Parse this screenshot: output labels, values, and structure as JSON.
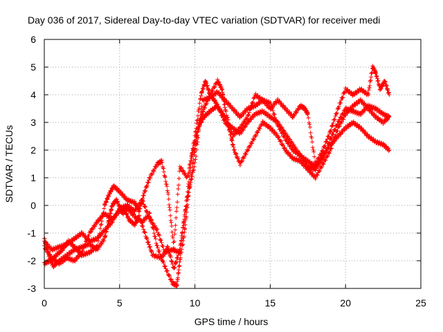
{
  "chart_data": {
    "type": "scatter",
    "title": "Day 036 of 2017, Sidereal Day-to-day VTEC variation (SDTVAR) for receiver medi",
    "xlabel": "GPS time / hours",
    "ylabel": "SDTVAR / TECUs",
    "xlim": [
      0,
      25
    ],
    "ylim": [
      -3,
      6
    ],
    "xticks": [
      "0",
      "5",
      "10",
      "15",
      "20",
      "25"
    ],
    "yticks": [
      "-3",
      "-2",
      "-1",
      "0",
      "1",
      "2",
      "3",
      "4",
      "5",
      "6"
    ],
    "grid": true,
    "marker": "+",
    "color": "#ff0000",
    "series": [
      {
        "points": [
          [
            0.0,
            -1.2
          ],
          [
            0.3,
            -1.8
          ],
          [
            0.6,
            -2.2
          ],
          [
            1.0,
            -2.0
          ],
          [
            1.5,
            -1.8
          ],
          [
            2.0,
            -1.6
          ],
          [
            2.5,
            -1.5
          ],
          [
            3.0,
            -1.4
          ],
          [
            3.5,
            -1.6
          ],
          [
            4.0,
            -1.2
          ],
          [
            4.3,
            -0.5
          ],
          [
            4.5,
            0.0
          ],
          [
            4.8,
            0.2
          ],
          [
            5.2,
            -0.3
          ],
          [
            5.5,
            -0.1
          ],
          [
            6.0,
            -0.4
          ],
          [
            6.5,
            -0.6
          ],
          [
            7.0,
            -0.3
          ],
          [
            7.5,
            -1.5
          ],
          [
            8.0,
            -2.2
          ],
          [
            8.5,
            -2.8
          ],
          [
            8.8,
            -2.9
          ],
          [
            9.0,
            -2.0
          ],
          [
            9.3,
            -1.0
          ],
          [
            9.6,
            0.5
          ],
          [
            10.0,
            2.0
          ],
          [
            10.3,
            3.0
          ],
          [
            10.6,
            3.5
          ],
          [
            11.0,
            4.0
          ],
          [
            11.3,
            3.8
          ],
          [
            11.6,
            3.5
          ],
          [
            12.0,
            3.2
          ],
          [
            12.3,
            2.7
          ],
          [
            12.6,
            2.0
          ],
          [
            13.0,
            1.5
          ],
          [
            13.5,
            2.0
          ],
          [
            14.0,
            2.5
          ],
          [
            14.5,
            3.0
          ],
          [
            15.0,
            2.8
          ],
          [
            15.5,
            2.5
          ],
          [
            16.0,
            2.0
          ],
          [
            16.5,
            1.7
          ],
          [
            17.0,
            1.6
          ],
          [
            17.5,
            1.3
          ],
          [
            18.0,
            1.0
          ],
          [
            18.5,
            1.5
          ],
          [
            19.0,
            2.0
          ],
          [
            19.5,
            2.8
          ],
          [
            20.0,
            3.3
          ],
          [
            20.5,
            3.6
          ],
          [
            21.0,
            3.8
          ],
          [
            21.5,
            3.5
          ],
          [
            22.0,
            3.2
          ],
          [
            22.5,
            3.0
          ],
          [
            22.9,
            3.2
          ]
        ]
      },
      {
        "points": [
          [
            0.0,
            -2.1
          ],
          [
            0.4,
            -2.0
          ],
          [
            0.8,
            -1.8
          ],
          [
            1.2,
            -1.6
          ],
          [
            1.6,
            -1.3
          ],
          [
            2.0,
            -1.5
          ],
          [
            2.5,
            -1.8
          ],
          [
            3.0,
            -1.7
          ],
          [
            3.5,
            -1.5
          ],
          [
            4.0,
            0.0
          ],
          [
            4.3,
            0.4
          ],
          [
            4.6,
            0.7
          ],
          [
            5.0,
            0.5
          ],
          [
            5.5,
            0.2
          ],
          [
            6.0,
            0.1
          ],
          [
            6.3,
            -0.2
          ],
          [
            6.6,
            0.4
          ],
          [
            7.0,
            1.0
          ],
          [
            7.5,
            1.5
          ],
          [
            7.8,
            1.6
          ],
          [
            8.2,
            0.5
          ],
          [
            8.6,
            -1.5
          ],
          [
            9.0,
            1.4
          ],
          [
            9.5,
            1.0
          ],
          [
            10.0,
            2.5
          ],
          [
            10.4,
            4.0
          ],
          [
            10.7,
            4.5
          ],
          [
            11.0,
            4.0
          ],
          [
            11.5,
            4.5
          ],
          [
            11.8,
            4.2
          ],
          [
            12.0,
            3.5
          ],
          [
            12.5,
            2.5
          ],
          [
            13.0,
            2.8
          ],
          [
            13.5,
            3.2
          ],
          [
            14.0,
            4.0
          ],
          [
            14.5,
            3.8
          ],
          [
            15.0,
            3.5
          ],
          [
            15.5,
            3.8
          ],
          [
            16.0,
            3.5
          ],
          [
            16.5,
            3.2
          ],
          [
            17.0,
            3.6
          ],
          [
            17.3,
            3.5
          ],
          [
            17.5,
            3.3
          ],
          [
            18.0,
            1.5
          ],
          [
            18.5,
            2.0
          ],
          [
            19.0,
            2.7
          ],
          [
            19.5,
            3.5
          ],
          [
            20.0,
            4.2
          ],
          [
            20.5,
            4.0
          ],
          [
            21.0,
            4.2
          ],
          [
            21.5,
            4.0
          ],
          [
            21.8,
            5.0
          ],
          [
            22.0,
            4.8
          ],
          [
            22.3,
            4.2
          ],
          [
            22.6,
            4.5
          ],
          [
            22.9,
            4.0
          ]
        ]
      },
      {
        "points": [
          [
            0.0,
            -1.5
          ],
          [
            0.5,
            -1.9
          ],
          [
            1.0,
            -2.1
          ],
          [
            1.5,
            -1.9
          ],
          [
            2.0,
            -2.0
          ],
          [
            2.5,
            -1.7
          ],
          [
            3.0,
            -1.0
          ],
          [
            3.5,
            -0.6
          ],
          [
            4.0,
            -0.3
          ],
          [
            4.5,
            -0.5
          ],
          [
            5.0,
            -0.2
          ],
          [
            5.3,
            -0.1
          ],
          [
            5.6,
            -0.5
          ],
          [
            6.0,
            -0.7
          ],
          [
            6.3,
            -0.4
          ],
          [
            6.8,
            -1.2
          ],
          [
            7.2,
            -1.8
          ],
          [
            7.8,
            -1.9
          ],
          [
            8.2,
            -1.5
          ],
          [
            8.6,
            -2.3
          ],
          [
            9.0,
            -1.6
          ],
          [
            9.4,
            0.0
          ],
          [
            9.8,
            1.8
          ],
          [
            10.2,
            2.8
          ],
          [
            10.6,
            3.2
          ],
          [
            11.0,
            3.4
          ],
          [
            11.5,
            3.6
          ],
          [
            12.0,
            3.0
          ],
          [
            12.5,
            2.8
          ],
          [
            13.0,
            2.6
          ],
          [
            13.5,
            3.0
          ],
          [
            14.0,
            3.3
          ],
          [
            14.5,
            3.4
          ],
          [
            15.0,
            3.2
          ],
          [
            15.5,
            3.0
          ],
          [
            16.0,
            2.6
          ],
          [
            16.5,
            2.2
          ],
          [
            17.0,
            1.8
          ],
          [
            17.5,
            1.6
          ],
          [
            18.0,
            1.4
          ],
          [
            18.5,
            1.8
          ],
          [
            19.0,
            2.2
          ],
          [
            19.5,
            2.5
          ],
          [
            20.0,
            2.8
          ],
          [
            20.5,
            3.0
          ],
          [
            21.0,
            2.8
          ],
          [
            21.5,
            2.5
          ],
          [
            22.0,
            2.3
          ],
          [
            22.5,
            2.2
          ],
          [
            22.9,
            2.0
          ]
        ]
      },
      {
        "points": [
          [
            0.0,
            -1.3
          ],
          [
            0.5,
            -1.6
          ],
          [
            1.0,
            -1.5
          ],
          [
            1.5,
            -1.4
          ],
          [
            2.0,
            -1.2
          ],
          [
            2.5,
            -1.0
          ],
          [
            3.0,
            -1.3
          ],
          [
            3.5,
            -1.2
          ],
          [
            4.0,
            -0.9
          ],
          [
            4.5,
            -0.6
          ],
          [
            5.0,
            -0.1
          ],
          [
            5.5,
            0.0
          ],
          [
            6.0,
            -0.2
          ],
          [
            6.5,
            0.2
          ],
          [
            7.0,
            -0.5
          ],
          [
            7.5,
            -0.9
          ],
          [
            8.0,
            -1.7
          ],
          [
            8.5,
            -1.6
          ],
          [
            9.0,
            -1.7
          ],
          [
            9.5,
            0.3
          ],
          [
            10.0,
            1.5
          ],
          [
            10.5,
            3.8
          ],
          [
            11.0,
            3.9
          ],
          [
            11.5,
            4.1
          ],
          [
            12.0,
            3.8
          ],
          [
            12.5,
            3.5
          ],
          [
            13.0,
            3.2
          ],
          [
            13.5,
            3.5
          ],
          [
            14.0,
            3.6
          ],
          [
            14.5,
            3.8
          ],
          [
            15.0,
            3.7
          ],
          [
            15.5,
            2.9
          ],
          [
            16.0,
            2.4
          ],
          [
            16.5,
            2.0
          ],
          [
            17.0,
            1.8
          ],
          [
            17.5,
            1.4
          ],
          [
            18.0,
            1.3
          ],
          [
            18.5,
            1.7
          ],
          [
            19.0,
            2.4
          ],
          [
            19.5,
            3.0
          ],
          [
            20.0,
            3.5
          ],
          [
            20.5,
            3.4
          ],
          [
            21.0,
            3.3
          ],
          [
            21.5,
            3.6
          ],
          [
            22.0,
            3.5
          ],
          [
            22.5,
            3.3
          ],
          [
            22.9,
            3.2
          ]
        ]
      }
    ]
  }
}
